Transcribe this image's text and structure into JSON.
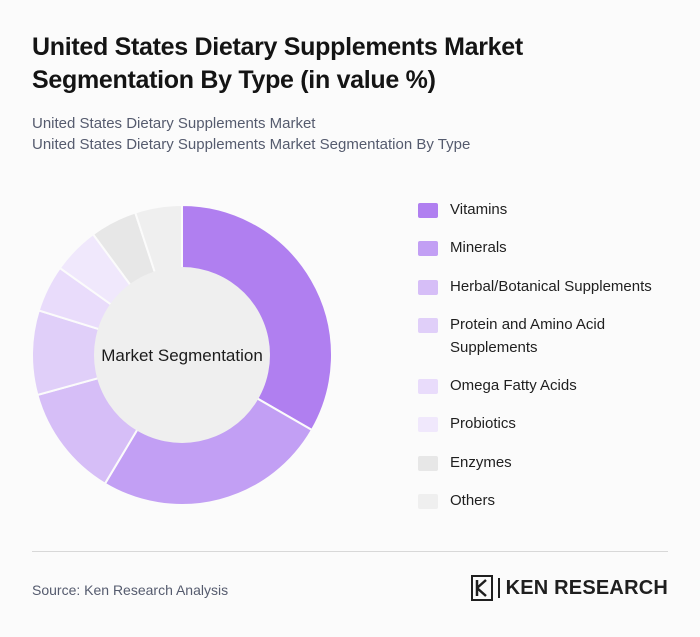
{
  "header": {
    "title": "United States Dietary Supplements Market Segmentation By Type (in value %)",
    "subtitle_line1": "United States Dietary Supplements Market",
    "subtitle_line2": "United States Dietary Supplements Market Segmentation By Type"
  },
  "chart_data": {
    "type": "pie",
    "variant": "donut",
    "center_label": "Market Segmentation",
    "legend_position": "right",
    "categories": [
      "Vitamins",
      "Minerals",
      "Herbal/Botanical Supplements",
      "Protein and Amino Acid Supplements",
      "Omega Fatty Acids",
      "Probiotics",
      "Enzymes",
      "Others"
    ],
    "values": [
      33,
      25,
      12,
      9,
      5,
      5,
      5,
      5
    ],
    "colors": [
      "#b07ff0",
      "#c29ff4",
      "#d6bef7",
      "#e0cff9",
      "#e9dcfb",
      "#f0e8fc",
      "#e7e7e7",
      "#efefef"
    ]
  },
  "footer": {
    "source": "Source: Ken Research Analysis",
    "brand_name": "KEN RESEARCH",
    "brand_icon": "ken-research-logo-icon"
  }
}
